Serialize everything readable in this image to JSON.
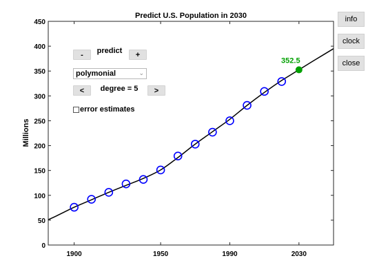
{
  "plot": {
    "title": "Predict U.S. Population in 2030",
    "ylabel": "Millions",
    "prediction_label": "352.5"
  },
  "controls": {
    "minus_label": "-",
    "predict_label": "predict",
    "plus_label": "+",
    "method_value": "polymonial",
    "prev_label": "<",
    "degree_label": "degree = 5",
    "next_label": ">",
    "error_label": "error estimates"
  },
  "side_buttons": {
    "info": "info",
    "clock": "clock",
    "close": "close"
  },
  "colors": {
    "marker": "#0000ff",
    "fit_line": "#000000",
    "prediction": "#00a000"
  },
  "chart_data": {
    "type": "scatter",
    "title": "Predict U.S. Population in 2030",
    "xlabel": "",
    "ylabel": "Millions",
    "xlim": [
      1885,
      2050
    ],
    "ylim": [
      0,
      450
    ],
    "xticks": [
      1900,
      1950,
      1990,
      2030
    ],
    "yticks": [
      0,
      50,
      100,
      150,
      200,
      250,
      300,
      350,
      400,
      450
    ],
    "grid": false,
    "series": [
      {
        "type": "scatter",
        "x": [
          1900,
          1910,
          1920,
          1930,
          1940,
          1950,
          1960,
          1970,
          1980,
          1990,
          2000,
          2010,
          2020
        ],
        "values": [
          76,
          92,
          106,
          123,
          132,
          151,
          179,
          203,
          227,
          250,
          281,
          309,
          329
        ]
      },
      {
        "type": "line",
        "x": [
          1885,
          1890,
          1900,
          1910,
          1920,
          1930,
          1940,
          1950,
          1960,
          1970,
          1980,
          1990,
          2000,
          2010,
          2020,
          2030,
          2040,
          2050
        ],
        "values": [
          51,
          59,
          76,
          91,
          106,
          120,
          134,
          151,
          176,
          203,
          228,
          253,
          281,
          307,
          331,
          352.5,
          374,
          395
        ]
      }
    ],
    "prediction": {
      "x": 2030,
      "y": 352.5,
      "label": "352.5"
    }
  }
}
